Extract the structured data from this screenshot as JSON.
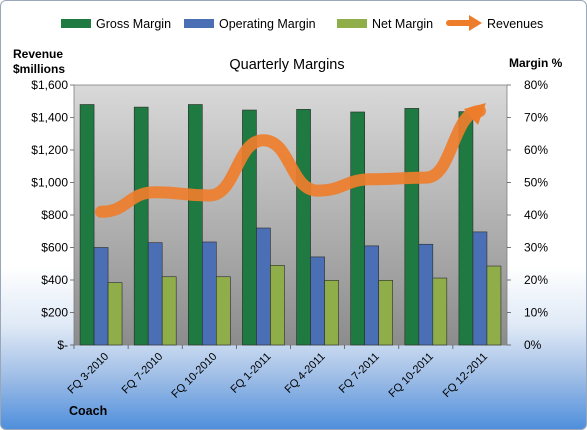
{
  "chart_data": {
    "type": "bar",
    "title": "Quarterly Margins",
    "left_axis_label_line1": "Revenue",
    "left_axis_label_line2": "$millions",
    "right_axis_label": "Margin %",
    "footer_label": "Coach",
    "categories": [
      "FQ 3-2010",
      "FQ 7-2010",
      "FQ 10-2010",
      "FQ 1-2011",
      "FQ 4-2011",
      "FQ 7-2011",
      "FQ 10-2011",
      "FQ 12-2011"
    ],
    "y_left": {
      "min": 0,
      "max": 1600,
      "step": 200,
      "tick_labels": [
        "$-",
        "$200",
        "$400",
        "$600",
        "$800",
        "$1,000",
        "$1,200",
        "$1,400",
        "$1,600"
      ]
    },
    "y_right": {
      "min": 0,
      "max": 80,
      "step": 10,
      "tick_labels": [
        "0%",
        "10%",
        "20%",
        "30%",
        "40%",
        "50%",
        "60%",
        "70%",
        "80%"
      ]
    },
    "bar_series": [
      {
        "name": "Gross Margin",
        "axis": "right",
        "color": "#1e7a40",
        "values": [
          74.0,
          73.2,
          74.0,
          72.3,
          72.5,
          71.7,
          72.8,
          71.8
        ]
      },
      {
        "name": "Operating Margin",
        "axis": "right",
        "color": "#4a6fb5",
        "values": [
          30.0,
          31.5,
          31.7,
          36.0,
          27.1,
          30.5,
          31.0,
          34.8
        ]
      },
      {
        "name": "Net Margin",
        "axis": "right",
        "color": "#8fae4a",
        "values": [
          19.2,
          21.0,
          21.0,
          24.5,
          19.9,
          19.9,
          20.6,
          24.3
        ]
      }
    ],
    "line_series": [
      {
        "name": "Revenues",
        "axis": "left",
        "color": "#ee7d2b",
        "values": [
          820,
          940,
          920,
          1260,
          950,
          1020,
          1030,
          1440
        ]
      }
    ],
    "legend_position": "top",
    "grid": false
  }
}
